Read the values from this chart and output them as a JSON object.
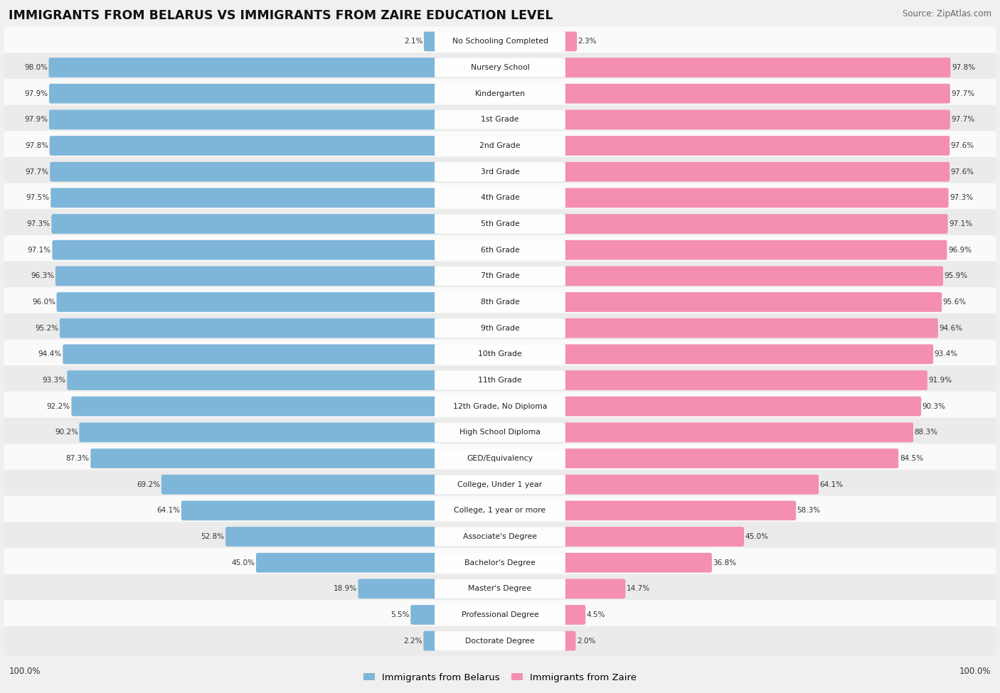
{
  "title": "IMMIGRANTS FROM BELARUS VS IMMIGRANTS FROM ZAIRE EDUCATION LEVEL",
  "source": "Source: ZipAtlas.com",
  "categories": [
    "No Schooling Completed",
    "Nursery School",
    "Kindergarten",
    "1st Grade",
    "2nd Grade",
    "3rd Grade",
    "4th Grade",
    "5th Grade",
    "6th Grade",
    "7th Grade",
    "8th Grade",
    "9th Grade",
    "10th Grade",
    "11th Grade",
    "12th Grade, No Diploma",
    "High School Diploma",
    "GED/Equivalency",
    "College, Under 1 year",
    "College, 1 year or more",
    "Associate's Degree",
    "Bachelor's Degree",
    "Master's Degree",
    "Professional Degree",
    "Doctorate Degree"
  ],
  "belarus": [
    2.1,
    98.0,
    97.9,
    97.9,
    97.8,
    97.7,
    97.5,
    97.3,
    97.1,
    96.3,
    96.0,
    95.2,
    94.4,
    93.3,
    92.2,
    90.2,
    87.3,
    69.2,
    64.1,
    52.8,
    45.0,
    18.9,
    5.5,
    2.2
  ],
  "zaire": [
    2.3,
    97.8,
    97.7,
    97.7,
    97.6,
    97.6,
    97.3,
    97.1,
    96.9,
    95.9,
    95.6,
    94.6,
    93.4,
    91.9,
    90.3,
    88.3,
    84.5,
    64.1,
    58.3,
    45.0,
    36.8,
    14.7,
    4.5,
    2.0
  ],
  "belarus_color": "#7EB6D9",
  "zaire_color": "#F48FB1",
  "background_color": "#f0f0f0",
  "row_bg_light": "#fafafa",
  "row_bg_dark": "#ebebeb",
  "legend_belarus": "Immigrants from Belarus",
  "legend_zaire": "Immigrants from Zaire"
}
